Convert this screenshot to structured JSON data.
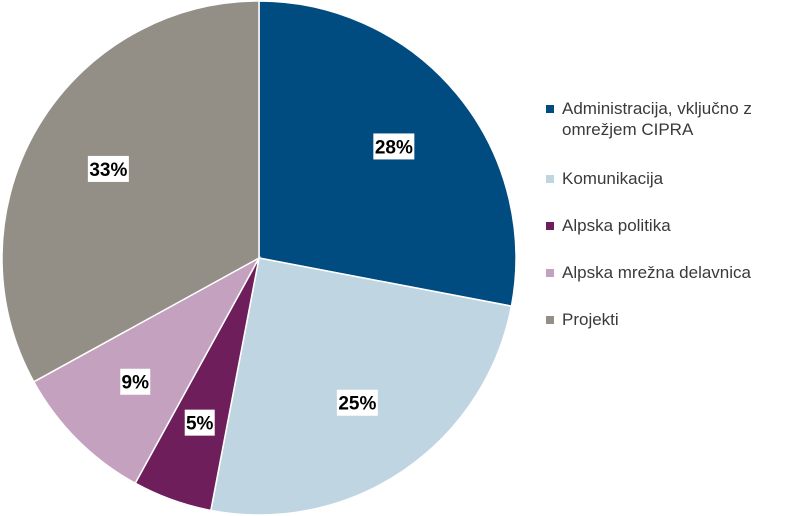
{
  "chart_data": {
    "type": "pie",
    "title": "",
    "start_angle_deg": 0,
    "direction": "clockwise",
    "legend_position": "right",
    "slices": [
      {
        "label": "Administracija, vključno z omrežjem CIPRA",
        "value": 28,
        "display": "28%",
        "color": "#004B80"
      },
      {
        "label": "Komunikacija",
        "value": 25,
        "display": "25%",
        "color": "#C0D5E2"
      },
      {
        "label": "Alpska politika",
        "value": 5,
        "display": "5%",
        "color": "#6E1E5A"
      },
      {
        "label": "Alpska mrežna delavnica",
        "value": 9,
        "display": "9%",
        "color": "#C3A1BF"
      },
      {
        "label": "Projekti",
        "value": 33,
        "display": "33%",
        "color": "#938F87"
      }
    ]
  }
}
